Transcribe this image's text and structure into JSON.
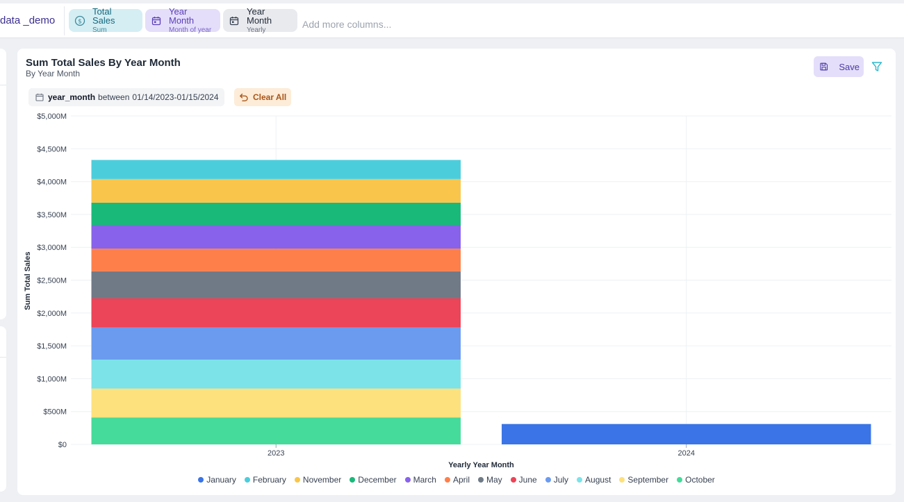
{
  "topbar": {
    "dataset_name": "data _demo",
    "pills": [
      {
        "title": "Total Sales",
        "sub": "Sum",
        "icon": "dollar-icon"
      },
      {
        "title": "Year Month",
        "sub": "Month of year",
        "icon": "calendar-icon"
      },
      {
        "title": "Year Month",
        "sub": "Yearly",
        "icon": "calendar-icon"
      }
    ],
    "add_columns_placeholder": "Add more columns..."
  },
  "card": {
    "title": "Sum Total Sales By Year Month",
    "subtitle": "By Year Month",
    "save_label": "Save",
    "filter": {
      "field": "year_month",
      "operator": "between",
      "value": "01/14/2023-01/15/2024"
    },
    "clear_all_label": "Clear All"
  },
  "chart_data": {
    "type": "bar",
    "stacked": true,
    "categories": [
      "2023",
      "2024"
    ],
    "xlabel": "Yearly Year Month",
    "ylabel": "Sum Total Sales",
    "ylim": [
      0,
      5000
    ],
    "yticks": [
      0,
      500,
      1000,
      1500,
      2000,
      2500,
      3000,
      3500,
      4000,
      4500,
      5000
    ],
    "ytick_labels": [
      "$0",
      "$500M",
      "$1,000M",
      "$1,500M",
      "$2,000M",
      "$2,500M",
      "$3,000M",
      "$3,500M",
      "$4,000M",
      "$4,500M",
      "$5,000M"
    ],
    "grid": true,
    "legend_position": "bottom",
    "series": [
      {
        "name": "January",
        "color": "#3a74e6",
        "values": [
          0,
          310
        ]
      },
      {
        "name": "February",
        "color": "#4ccddc",
        "values": [
          290,
          0
        ]
      },
      {
        "name": "November",
        "color": "#f9c54a",
        "values": [
          360,
          0
        ]
      },
      {
        "name": "December",
        "color": "#19b97a",
        "values": [
          340,
          0
        ]
      },
      {
        "name": "March",
        "color": "#8862ea",
        "values": [
          360,
          0
        ]
      },
      {
        "name": "April",
        "color": "#ff7f4a",
        "values": [
          345,
          0
        ]
      },
      {
        "name": "May",
        "color": "#707a87",
        "values": [
          410,
          0
        ]
      },
      {
        "name": "June",
        "color": "#ec4458",
        "values": [
          445,
          0
        ]
      },
      {
        "name": "July",
        "color": "#6b9bef",
        "values": [
          490,
          0
        ]
      },
      {
        "name": "August",
        "color": "#7ce3e8",
        "values": [
          440,
          0
        ]
      },
      {
        "name": "September",
        "color": "#fde17c",
        "values": [
          440,
          0
        ]
      },
      {
        "name": "October",
        "color": "#45db9a",
        "values": [
          410,
          0
        ]
      }
    ],
    "stack_order": [
      "October",
      "September",
      "August",
      "July",
      "June",
      "May",
      "April",
      "March",
      "December",
      "November",
      "February",
      "January"
    ]
  }
}
